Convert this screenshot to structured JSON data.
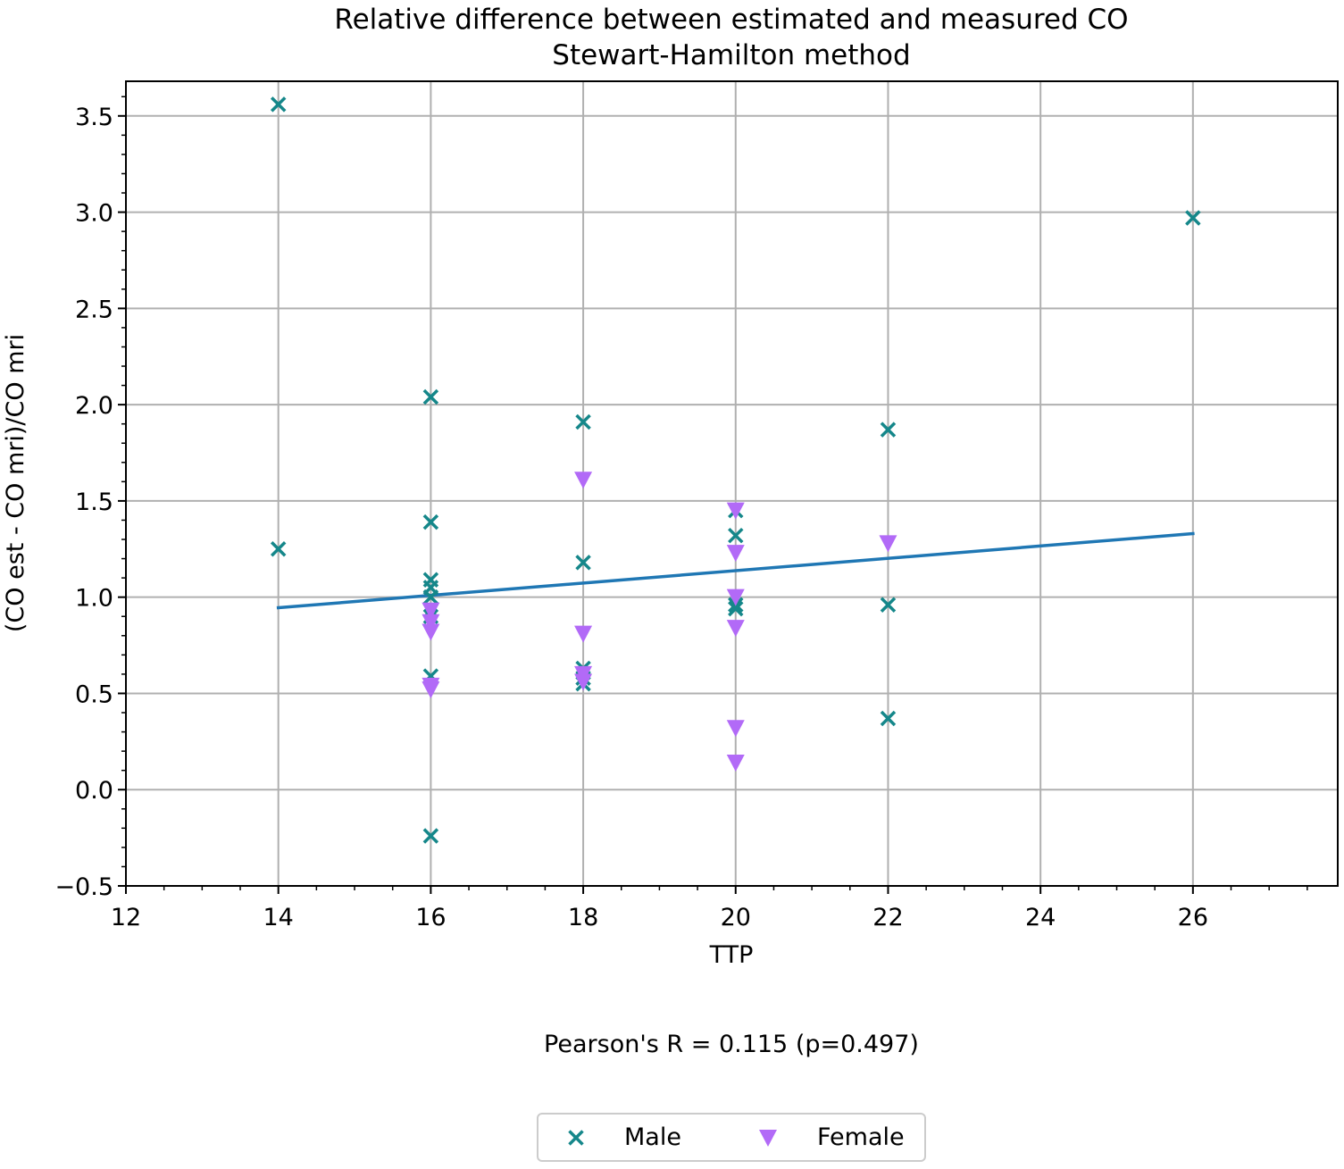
{
  "chart_data": {
    "type": "scatter",
    "title": "Relative difference between estimated and measured CO",
    "subtitle": "Stewart-Hamilton method",
    "xlabel": "TTP",
    "ylabel": "(CO est - CO mri)/CO mri",
    "xlim": [
      12,
      27.9
    ],
    "ylim": [
      -0.5,
      3.68
    ],
    "x_ticks": [
      12,
      14,
      16,
      18,
      20,
      22,
      24,
      26
    ],
    "x_tick_labels": [
      "12",
      "14",
      "16",
      "18",
      "20",
      "22",
      "24",
      "26"
    ],
    "y_ticks": [
      -0.5,
      0.0,
      0.5,
      1.0,
      1.5,
      2.0,
      2.5,
      3.0,
      3.5
    ],
    "y_tick_labels": [
      "−0.5",
      "0.0",
      "0.5",
      "1.0",
      "1.5",
      "2.0",
      "2.5",
      "3.0",
      "3.5"
    ],
    "grid": true,
    "legend_position": "bottom-center",
    "series": [
      {
        "name": "Male",
        "marker": "x",
        "color": "#15878a",
        "points": [
          [
            14,
            3.56
          ],
          [
            14,
            1.25
          ],
          [
            16,
            2.04
          ],
          [
            16,
            1.39
          ],
          [
            16,
            1.09
          ],
          [
            16,
            1.05
          ],
          [
            16,
            1.0
          ],
          [
            16,
            0.93
          ],
          [
            16,
            0.9
          ],
          [
            16,
            0.59
          ],
          [
            16,
            -0.24
          ],
          [
            18,
            1.91
          ],
          [
            18,
            1.18
          ],
          [
            18,
            0.63
          ],
          [
            18,
            0.58
          ],
          [
            18,
            0.55
          ],
          [
            20,
            1.45
          ],
          [
            20,
            1.32
          ],
          [
            20,
            0.96
          ],
          [
            20,
            0.94
          ],
          [
            22,
            1.87
          ],
          [
            22,
            0.96
          ],
          [
            22,
            0.37
          ],
          [
            26,
            2.97
          ]
        ]
      },
      {
        "name": "Female",
        "marker": "triangle-down",
        "color": "#b26af7",
        "points": [
          [
            16,
            0.93
          ],
          [
            16,
            0.87
          ],
          [
            16,
            0.82
          ],
          [
            16,
            0.54
          ],
          [
            16,
            0.52
          ],
          [
            18,
            1.61
          ],
          [
            18,
            0.81
          ],
          [
            18,
            0.6
          ],
          [
            18,
            0.56
          ],
          [
            20,
            1.45
          ],
          [
            20,
            1.23
          ],
          [
            20,
            1.0
          ],
          [
            20,
            0.84
          ],
          [
            20,
            0.32
          ],
          [
            20,
            0.14
          ],
          [
            22,
            1.28
          ]
        ]
      }
    ],
    "regression_line": {
      "color": "#1f77b4",
      "x": [
        14,
        26
      ],
      "y": [
        0.945,
        1.33
      ]
    },
    "annotation": "Pearson's R = 0.115 (p=0.497)"
  }
}
